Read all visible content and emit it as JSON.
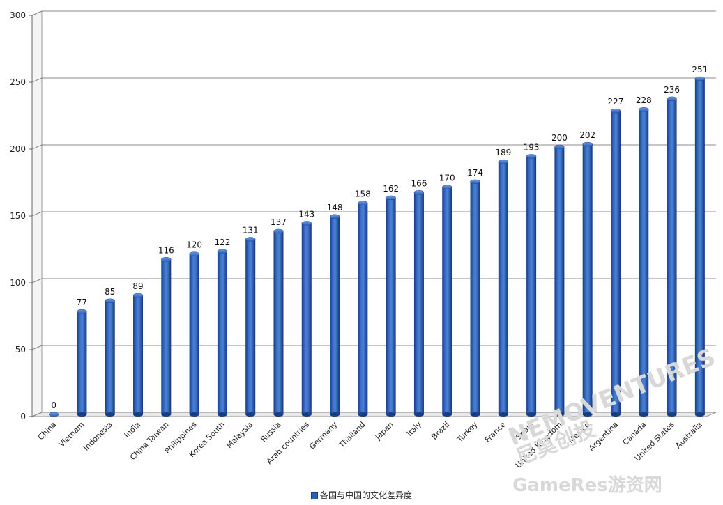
{
  "chart_data": {
    "type": "bar",
    "categories": [
      "China",
      "Vietnam",
      "Indonesia",
      "India",
      "China Taiwan",
      "Philippines",
      "Korea South",
      "Malaysia",
      "Russia",
      "Arab countries",
      "Germany",
      "Thailand",
      "Japan",
      "Italy",
      "Brazil",
      "Turkey",
      "France",
      "Spain",
      "United Kingdom",
      "Mexico",
      "Argentina",
      "Canada",
      "United States",
      "Australia"
    ],
    "series": [
      {
        "name": "各国与中国的文化差异度",
        "values": [
          0,
          77,
          85,
          89,
          116,
          120,
          122,
          131,
          137,
          143,
          148,
          158,
          162,
          166,
          170,
          174,
          189,
          193,
          200,
          202,
          227,
          228,
          236,
          251
        ]
      }
    ],
    "ylim": [
      0,
      300
    ],
    "yticks": [
      0,
      50,
      100,
      150,
      200,
      250,
      300
    ],
    "grid": true,
    "legend_position": "bottom",
    "bar_color": "#2e5fb6"
  },
  "watermarks": {
    "brand": "NEMOVENTURES",
    "brand_cn": "尼莫创投",
    "site": "GameRes游资网"
  }
}
